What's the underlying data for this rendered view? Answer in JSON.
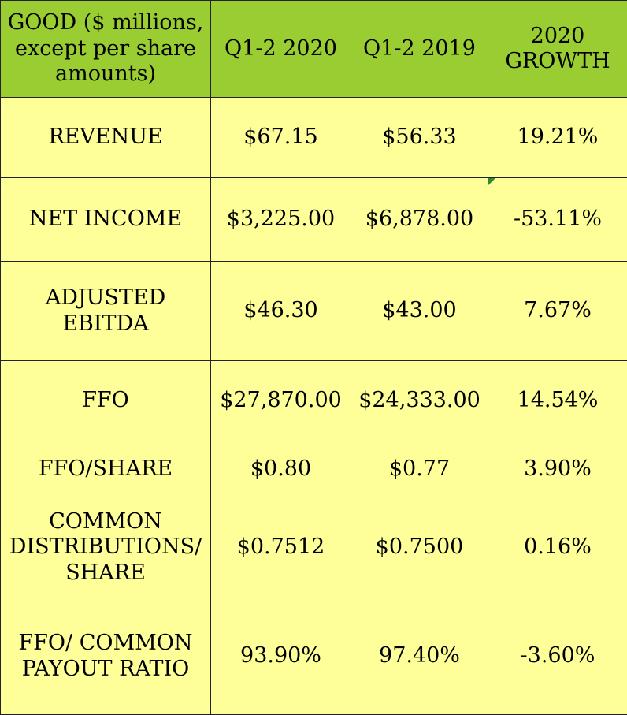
{
  "table": {
    "headers": [
      "GOOD ($ millions, except per share amounts)",
      "Q1-2 2020",
      "Q1-2 2019",
      "2020 GROWTH"
    ],
    "rows": [
      [
        "REVENUE",
        "$67.15",
        "$56.33",
        "19.21%"
      ],
      [
        "NET INCOME",
        "$3,225.00",
        "$6,878.00",
        "-53.11%"
      ],
      [
        "ADJUSTED EBITDA",
        "$46.30",
        "$43.00",
        "7.67%"
      ],
      [
        "FFO",
        "$27,870.00",
        "$24,333.00",
        "14.54%"
      ],
      [
        "FFO/SHARE",
        "$0.80",
        "$0.77",
        "3.90%"
      ],
      [
        "COMMON DISTRIBUTIONS/ SHARE",
        "$0.7512",
        "$0.7500",
        "0.16%"
      ],
      [
        "FFO/ COMMON PAYOUT RATIO",
        "93.90%",
        "97.40%",
        "-3.60%"
      ]
    ]
  },
  "colors": {
    "header_bg": "#9acd32",
    "body_bg": "#ffff99",
    "comment_marker": "#2e8b2e"
  }
}
